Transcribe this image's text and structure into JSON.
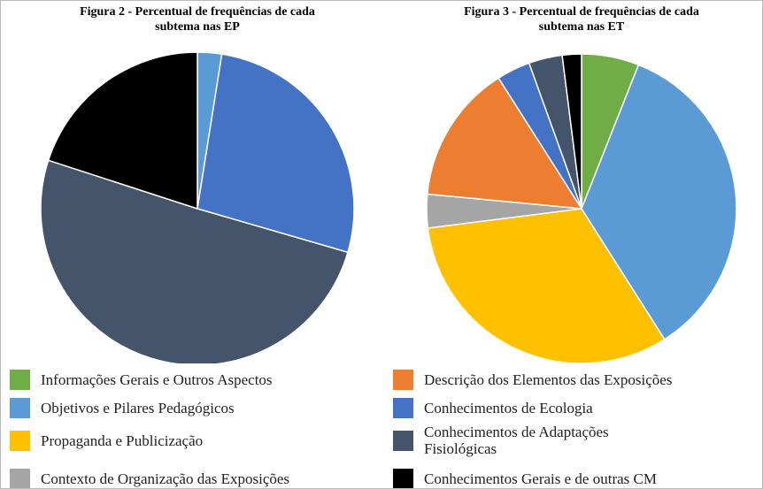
{
  "chart_data": [
    {
      "type": "pie",
      "title": "Figura 2 - Percentual de frequências de cada\nsubtema nas EP",
      "values": [
        0,
        2.5,
        0,
        0,
        0,
        27,
        50.5,
        20
      ]
    },
    {
      "type": "pie",
      "title": "Figura 3 - Percentual de frequências de cada\nsubtema nas ET",
      "values": [
        6,
        35,
        32,
        3.5,
        14.5,
        3.5,
        3.5,
        2
      ]
    }
  ],
  "legend": {
    "labels": [
      "Informações Gerais e Outros Aspectos",
      "Objetivos e Pilares Pedagógicos",
      "Propaganda e Publicização",
      "Contexto de Organização das Exposições",
      "Descrição dos Elementos das Exposições",
      "Conhecimentos de Ecologia",
      "Conhecimentos de Adaptações\nFisiológicas",
      "Conhecimentos Gerais e de outras CM"
    ],
    "colors": [
      "#70ad47",
      "#5b9bd5",
      "#ffc000",
      "#a5a5a5",
      "#ed7d31",
      "#4472c4",
      "#44546a",
      "#000000"
    ]
  }
}
